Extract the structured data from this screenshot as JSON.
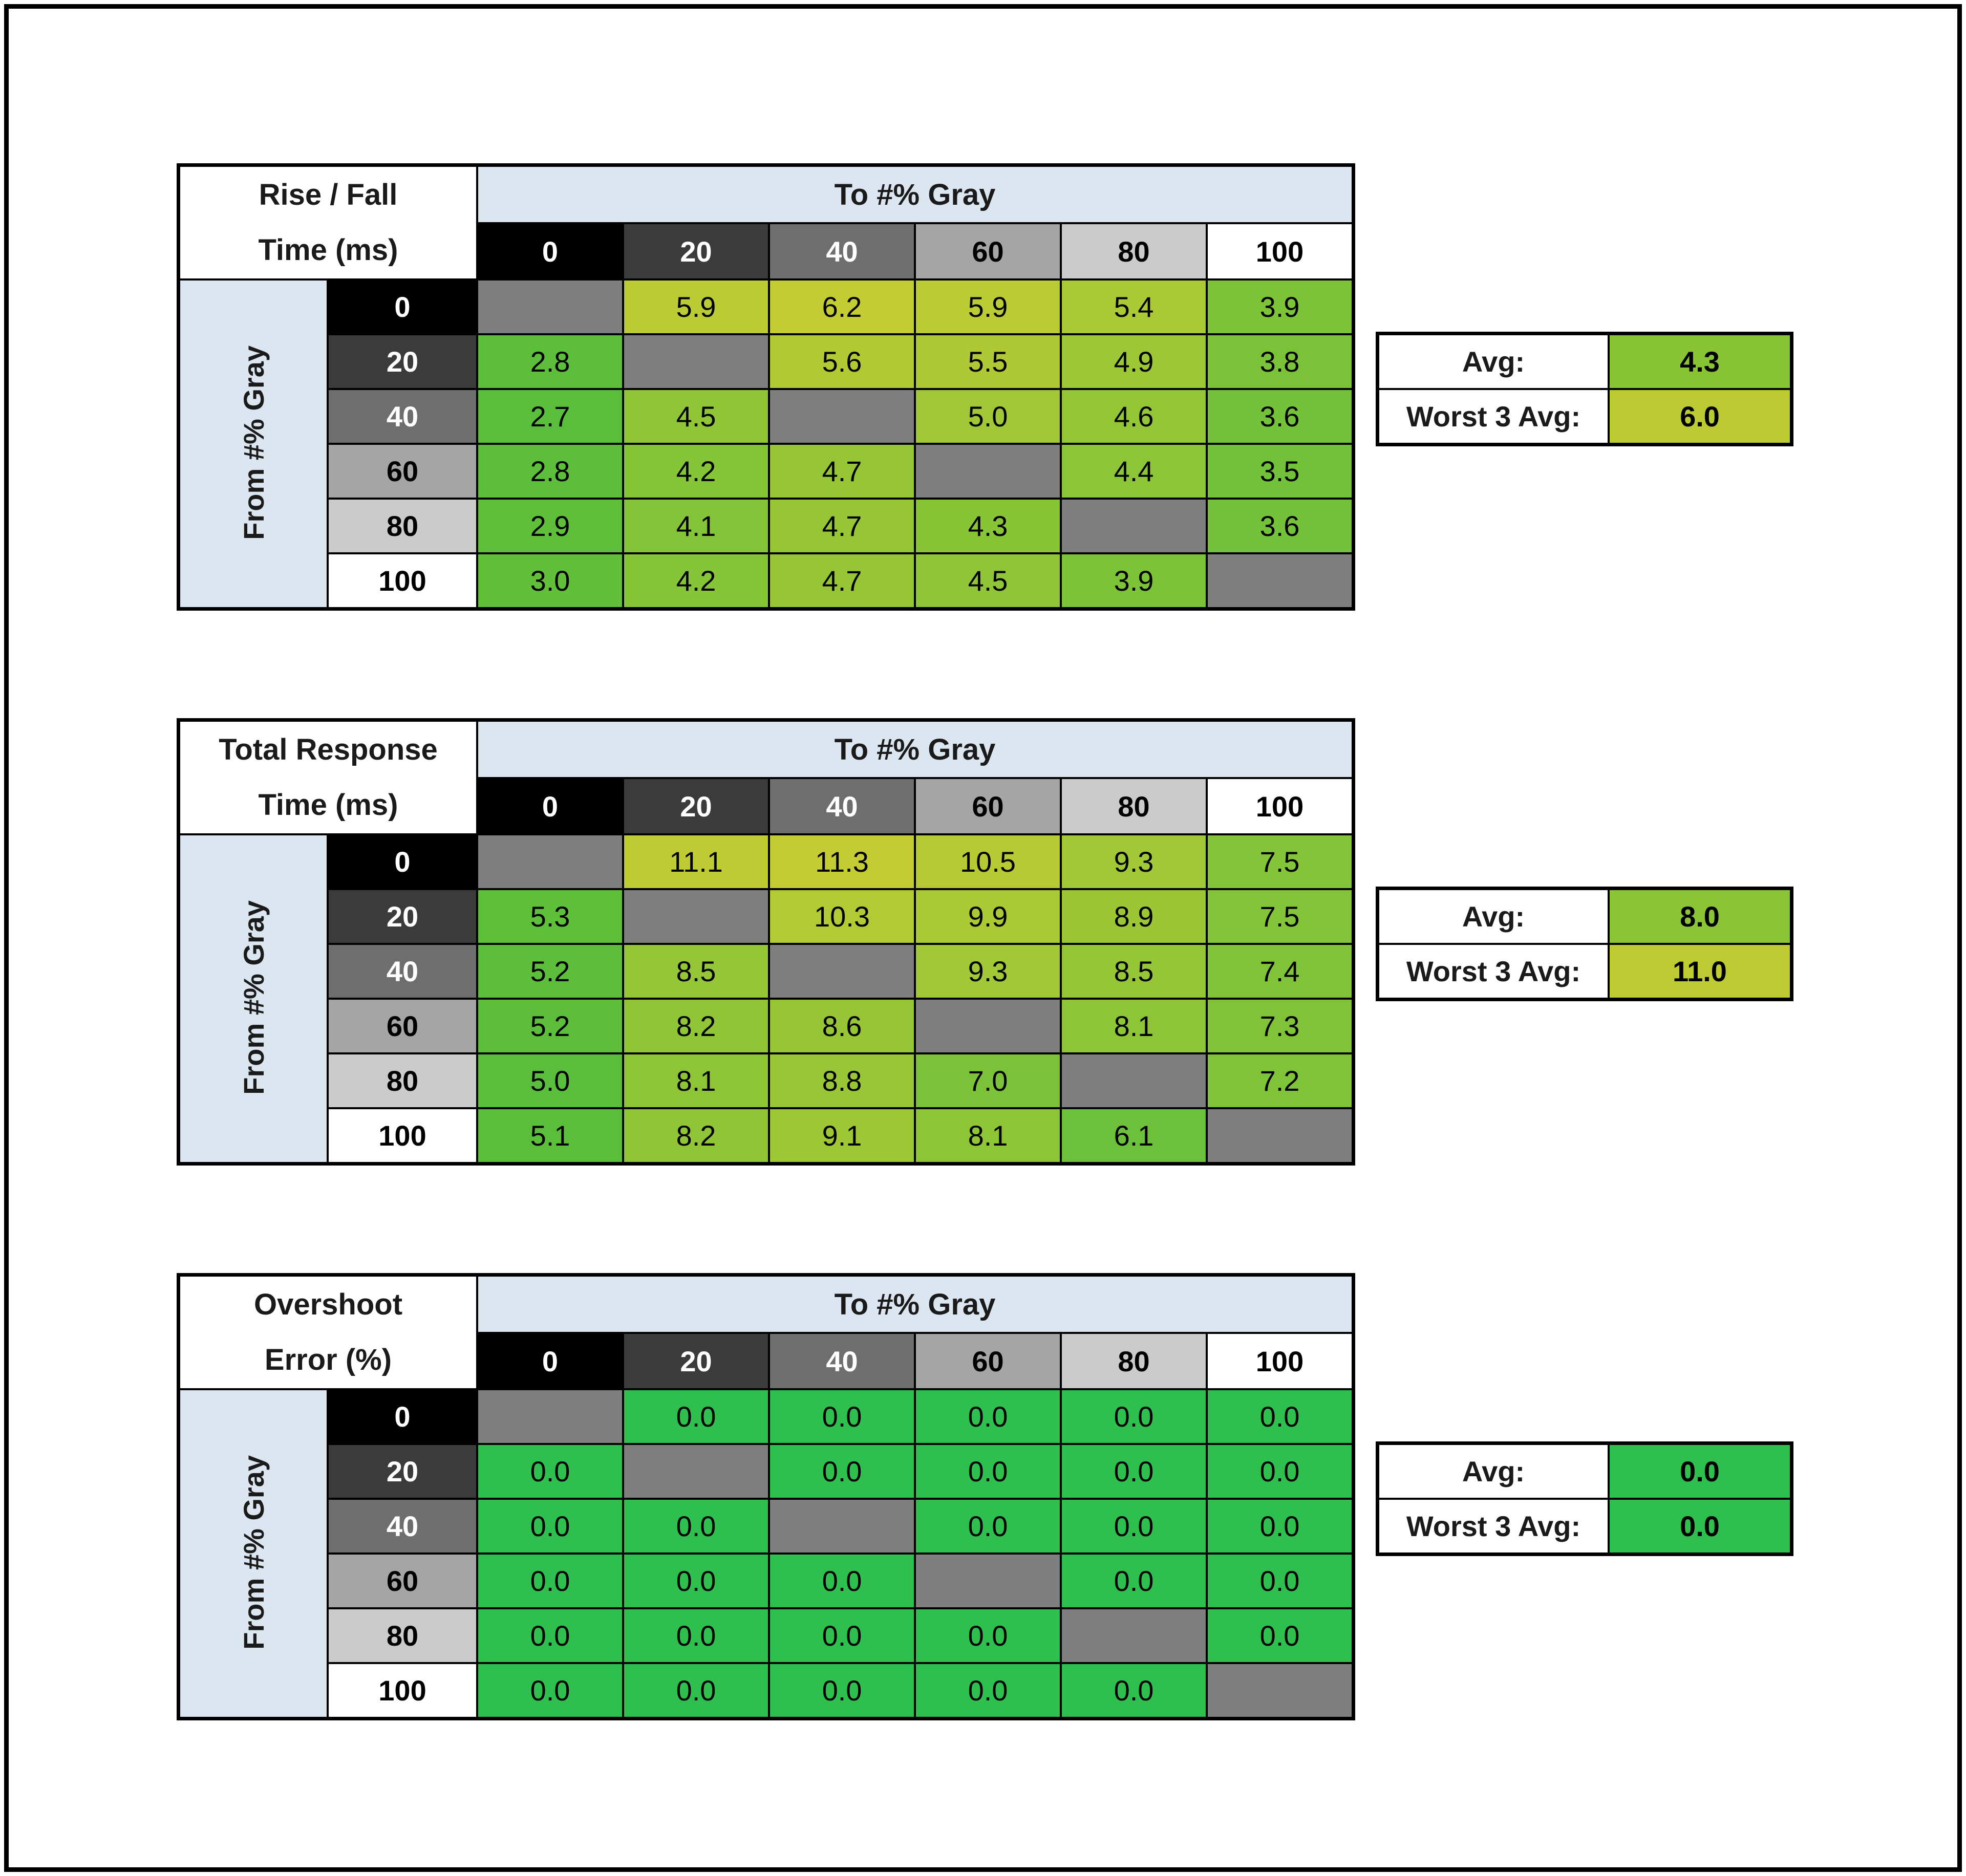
{
  "styles": {
    "header_fill": "#dce6f1",
    "diagonal_fill": "#7f7f7f",
    "grid_line": "#000000",
    "frame_border": "#000000",
    "tick_colors": [
      {
        "label": "0",
        "bg": "#000000",
        "fg": "#ffffff"
      },
      {
        "label": "20",
        "bg": "#3b3b3b",
        "fg": "#ffffff"
      },
      {
        "label": "40",
        "bg": "#6e6e6e",
        "fg": "#ffffff"
      },
      {
        "label": "60",
        "bg": "#a5a5a5",
        "fg": "#000000"
      },
      {
        "label": "80",
        "bg": "#cbcbcb",
        "fg": "#000000"
      },
      {
        "label": "100",
        "bg": "#ffffff",
        "fg": "#000000"
      }
    ]
  },
  "chart_data": [
    {
      "type": "heatmap",
      "name": "rise-fall-time",
      "title": "Rise / Fall Time (ms)",
      "title_lines": [
        "Rise / Fall",
        "Time (ms)"
      ],
      "x_label": "To #% Gray",
      "y_label": "From #% Gray",
      "x_ticks": [
        "0",
        "20",
        "40",
        "60",
        "80",
        "100"
      ],
      "y_ticks": [
        "0",
        "20",
        "40",
        "60",
        "80",
        "100"
      ],
      "values": [
        [
          null,
          5.9,
          6.2,
          5.9,
          5.4,
          3.9
        ],
        [
          2.8,
          null,
          5.6,
          5.5,
          4.9,
          3.8
        ],
        [
          2.7,
          4.5,
          null,
          5.0,
          4.6,
          3.6
        ],
        [
          2.8,
          4.2,
          4.7,
          null,
          4.4,
          3.5
        ],
        [
          2.9,
          4.1,
          4.7,
          4.3,
          null,
          3.6
        ],
        [
          3.0,
          4.2,
          4.7,
          4.5,
          3.9,
          null
        ]
      ],
      "avg_label": "Avg:",
      "avg": 4.3,
      "worst3_label": "Worst 3 Avg:",
      "worst3": 6.0,
      "color_scale": {
        "min": 2.7,
        "max": 6.2,
        "low": "#59be3b",
        "high": "#c3cc33"
      }
    },
    {
      "type": "heatmap",
      "name": "total-response-time",
      "title": "Total Response Time (ms)",
      "title_lines": [
        "Total Response",
        "Time (ms)"
      ],
      "x_label": "To #% Gray",
      "y_label": "From #% Gray",
      "x_ticks": [
        "0",
        "20",
        "40",
        "60",
        "80",
        "100"
      ],
      "y_ticks": [
        "0",
        "20",
        "40",
        "60",
        "80",
        "100"
      ],
      "values": [
        [
          null,
          11.1,
          11.3,
          10.5,
          9.3,
          7.5
        ],
        [
          5.3,
          null,
          10.3,
          9.9,
          8.9,
          7.5
        ],
        [
          5.2,
          8.5,
          null,
          9.3,
          8.5,
          7.4
        ],
        [
          5.2,
          8.2,
          8.6,
          null,
          8.1,
          7.3
        ],
        [
          5.0,
          8.1,
          8.8,
          7.0,
          null,
          7.2
        ],
        [
          5.1,
          8.2,
          9.1,
          8.1,
          6.1,
          null
        ]
      ],
      "avg_label": "Avg:",
      "avg": 8.0,
      "worst3_label": "Worst 3 Avg:",
      "worst3": 11.0,
      "color_scale": {
        "min": 5.0,
        "max": 11.3,
        "low": "#59be3b",
        "high": "#c3cc33"
      }
    },
    {
      "type": "heatmap",
      "name": "overshoot-error",
      "title": "Overshoot Error (%)",
      "title_lines": [
        "Overshoot",
        "Error (%)"
      ],
      "x_label": "To #% Gray",
      "y_label": "From #% Gray",
      "x_ticks": [
        "0",
        "20",
        "40",
        "60",
        "80",
        "100"
      ],
      "y_ticks": [
        "0",
        "20",
        "40",
        "60",
        "80",
        "100"
      ],
      "values": [
        [
          null,
          0.0,
          0.0,
          0.0,
          0.0,
          0.0
        ],
        [
          0.0,
          null,
          0.0,
          0.0,
          0.0,
          0.0
        ],
        [
          0.0,
          0.0,
          null,
          0.0,
          0.0,
          0.0
        ],
        [
          0.0,
          0.0,
          0.0,
          null,
          0.0,
          0.0
        ],
        [
          0.0,
          0.0,
          0.0,
          0.0,
          null,
          0.0
        ],
        [
          0.0,
          0.0,
          0.0,
          0.0,
          0.0,
          null
        ]
      ],
      "avg_label": "Avg:",
      "avg": 0.0,
      "worst3_label": "Worst 3 Avg:",
      "worst3": 0.0,
      "color_scale": {
        "min": 0,
        "max": 0,
        "low": "#2ebf4f",
        "high": "#2ebf4f"
      }
    }
  ]
}
